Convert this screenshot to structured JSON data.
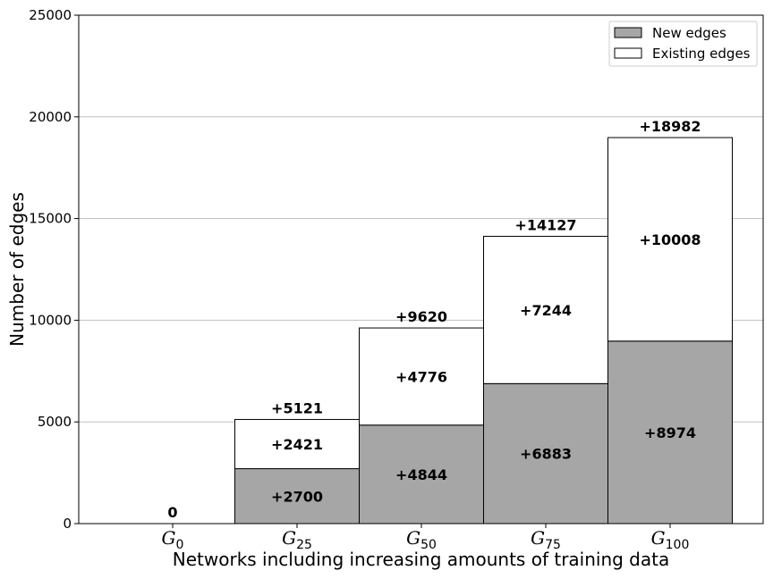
{
  "chart_data": {
    "type": "bar",
    "stacked": true,
    "title": "",
    "xlabel": "Networks including increasing amounts of training data",
    "ylabel": "Number of edges",
    "categories": [
      {
        "symbol": "G",
        "subscript": "0"
      },
      {
        "symbol": "G",
        "subscript": "25"
      },
      {
        "symbol": "G",
        "subscript": "50"
      },
      {
        "symbol": "G",
        "subscript": "75"
      },
      {
        "symbol": "G",
        "subscript": "100"
      }
    ],
    "series": [
      {
        "name": "New edges",
        "color": "#a6a6a6",
        "values": [
          0,
          2700,
          4844,
          6883,
          8974
        ],
        "labels": [
          "",
          "+2700",
          "+4844",
          "+6883",
          "+8974"
        ]
      },
      {
        "name": "Existing edges",
        "color": "#ffffff",
        "values": [
          0,
          2421,
          4776,
          7244,
          10008
        ],
        "labels": [
          "",
          "+2421",
          "+4776",
          "+7244",
          "+10008"
        ]
      }
    ],
    "totals": [
      0,
      5121,
      9620,
      14127,
      18982
    ],
    "total_labels": [
      "0",
      "+5121",
      "+9620",
      "+14127",
      "+18982"
    ],
    "ylim": [
      0,
      25000
    ],
    "yticks": [
      "0",
      "5000",
      "10000",
      "15000",
      "20000",
      "25000"
    ],
    "ytick_values": [
      0,
      5000,
      10000,
      15000,
      20000,
      25000
    ],
    "grid": "horizontal",
    "legend": "top-right"
  }
}
